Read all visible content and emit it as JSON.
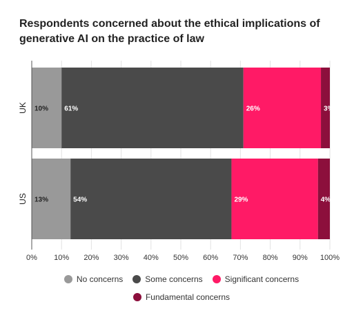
{
  "chart_data": {
    "type": "bar",
    "orientation": "horizontal",
    "stacked": true,
    "title": "Respondents concerned about the ethical implications of generative AI on the practice of law",
    "categories": [
      "UK",
      "US"
    ],
    "series": [
      {
        "name": "No concerns",
        "color": "#999999",
        "values": [
          10,
          13
        ],
        "labels": [
          "10%",
          "13%"
        ]
      },
      {
        "name": "Some concerns",
        "color": "#4a4a4a",
        "values": [
          61,
          54
        ],
        "labels": [
          "61%",
          "54%"
        ]
      },
      {
        "name": "Significant concerns",
        "color": "#ff1a66",
        "values": [
          26,
          29
        ],
        "labels": [
          "26%",
          "29%"
        ]
      },
      {
        "name": "Fundamental concerns",
        "color": "#8c0f3c",
        "values": [
          3,
          4
        ],
        "labels": [
          "3%",
          "4%"
        ]
      }
    ],
    "xlim": [
      0,
      100
    ],
    "xticks": [
      "0%",
      "10%",
      "20%",
      "30%",
      "40%",
      "50%",
      "60%",
      "70%",
      "80%",
      "90%",
      "100%"
    ],
    "grid": true,
    "legend_position": "bottom"
  }
}
